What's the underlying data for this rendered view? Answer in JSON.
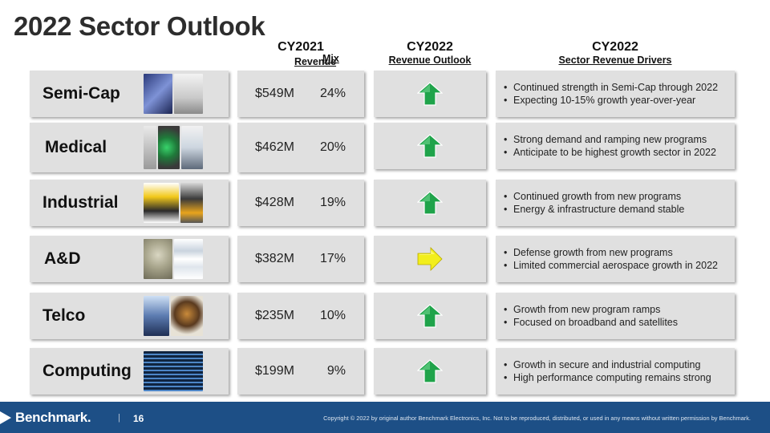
{
  "title": "2022 Sector Outlook",
  "headers": {
    "cy2021": "CY2021",
    "revenue": "Revenue",
    "mix": "Mix",
    "cy2022_outlook_year": "CY2022",
    "revenue_outlook": "Revenue Outlook",
    "cy2022_drivers_year": "CY2022",
    "sector_drivers": "Sector Revenue Drivers"
  },
  "sectors": [
    {
      "name": "Semi-Cap",
      "revenue": "$549M",
      "mix": "24%",
      "outlook": "up",
      "drivers": [
        "Continued strength in Semi-Cap through 2022",
        "Expecting 10-15% growth year-over-year"
      ]
    },
    {
      "name": "Medical",
      "revenue": "$462M",
      "mix": "20%",
      "outlook": "up",
      "drivers": [
        "Strong demand and ramping new programs",
        "Anticipate to be highest growth sector in 2022"
      ]
    },
    {
      "name": "Industrial",
      "revenue": "$428M",
      "mix": "19%",
      "outlook": "up",
      "drivers": [
        "Continued growth from new programs",
        "Energy & infrastructure demand stable"
      ]
    },
    {
      "name": "A&D",
      "revenue": "$382M",
      "mix": "17%",
      "outlook": "flat",
      "drivers": [
        "Defense growth from new programs",
        "Limited commercial aerospace growth in 2022"
      ]
    },
    {
      "name": "Telco",
      "revenue": "$235M",
      "mix": "10%",
      "outlook": "up",
      "drivers": [
        "Growth from new program ramps",
        "Focused on broadband and satellites"
      ]
    },
    {
      "name": "Computing",
      "revenue": "$199M",
      "mix": "9%",
      "outlook": "up",
      "drivers": [
        "Growth in secure and industrial computing",
        "High performance computing remains strong"
      ]
    }
  ],
  "icons": {
    "up": "up-arrow-icon",
    "flat": "right-arrow-icon"
  },
  "colors": {
    "up_fill": "#1fa34a",
    "up_light": "#6fd58f",
    "flat_fill": "#f2ee1c",
    "flat_light": "#fffb8a",
    "footer": "#1d4f86"
  },
  "footer": {
    "logo": "Benchmark.",
    "separator": "|",
    "page": "16",
    "copyright": "Copyright © 2022 by original author Benchmark Electronics, Inc. Not to be reproduced, distributed, or used in any means without written permission by Benchmark."
  }
}
